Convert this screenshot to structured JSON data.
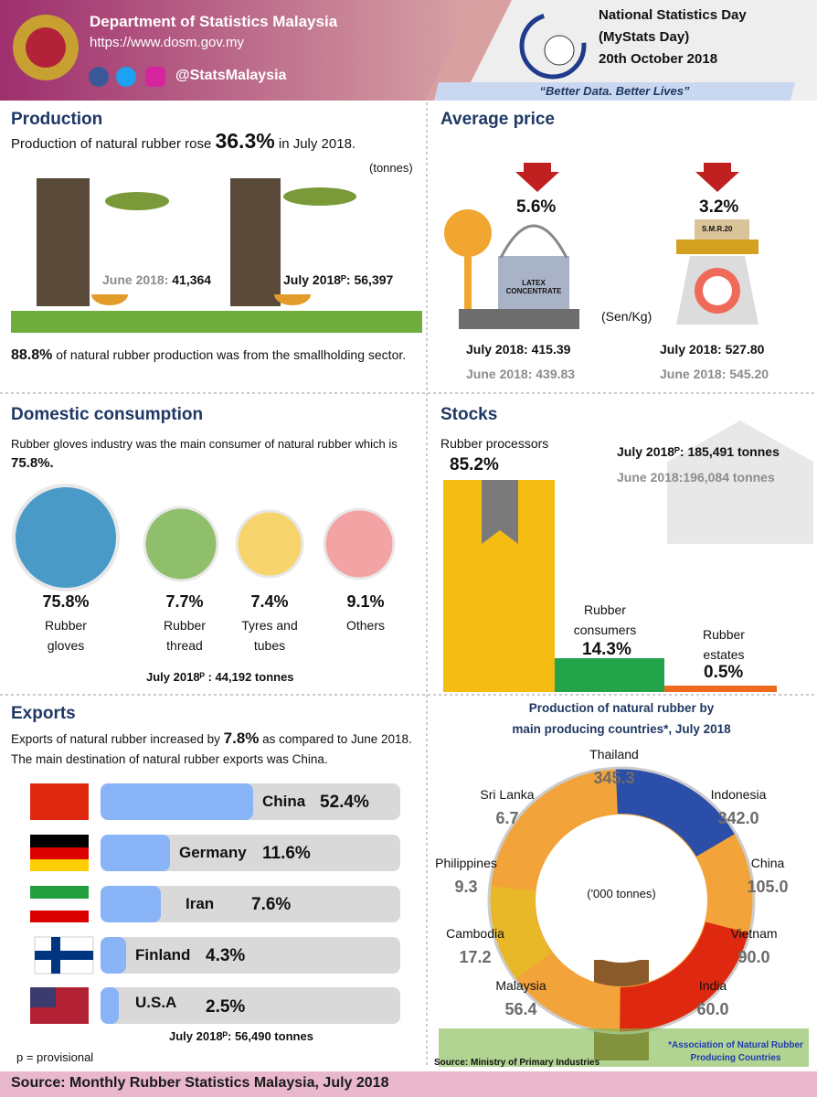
{
  "header": {
    "org": "Department of Statistics Malaysia",
    "url": "https://www.dosm.gov.my",
    "handle": "@StatsMalaysia",
    "event_title": "National Statistics Day",
    "event_sub": "(MyStats Day)",
    "event_date": "20th October 2018",
    "tagline": "“Better Data. Better Lives”"
  },
  "production": {
    "title": "Production",
    "text_before": "Production of natural rubber rose",
    "change": "36.3%",
    "text_after": "in July 2018.",
    "unit": "(tonnes)",
    "june_label": "June 2018:",
    "june_value": "41,364",
    "july_label": "July 2018ᴾ:",
    "july_value": "56,397",
    "share": "88.8%",
    "share_text": "of natural rubber production was from the smallholding sector."
  },
  "average_price": {
    "title": "Average price",
    "latex_change": "5.6%",
    "latex_label": "LATEX CONCENTRATE",
    "smr_change": "3.2%",
    "smr_label": "S.M.R.20",
    "unit": "(Sen/Kg)",
    "latex_july": "July 2018: 415.39",
    "latex_june": "June 2018: 439.83",
    "smr_july": "July 2018: 527.80",
    "smr_june": "June 2018: 545.20"
  },
  "domestic": {
    "title": "Domestic consumption",
    "text": "Rubber gloves industry was the main consumer of  natural rubber  which is",
    "main_share": "75.8%.",
    "items": [
      {
        "value": "75.8%",
        "label": "Rubber gloves"
      },
      {
        "value": "7.7%",
        "label": "Rubber thread"
      },
      {
        "value": "7.4%",
        "label": "Tyres and tubes"
      },
      {
        "value": "9.1%",
        "label": "Others"
      }
    ],
    "total": "July 2018ᴾ : 44,192 tonnes"
  },
  "stocks": {
    "title": "Stocks",
    "items": [
      {
        "label": "Rubber processors",
        "value": "85.2%"
      },
      {
        "label": "Rubber consumers",
        "value": "14.3%"
      },
      {
        "label": "Rubber estates",
        "value": "0.5%"
      }
    ],
    "july": "July 2018ᴾ: 185,491 tonnes",
    "june": "June 2018:196,084 tonnes"
  },
  "exports": {
    "title": "Exports",
    "text_before": "Exports of natural rubber increased by",
    "change": "7.8%",
    "text_after": "as compared to June 2018.",
    "text_line2": "The main destination of natural rubber exports was China.",
    "items": [
      {
        "country": "China",
        "value": "52.4%"
      },
      {
        "country": "Germany",
        "value": "11.6%"
      },
      {
        "country": "Iran",
        "value": "7.6%"
      },
      {
        "country": "Finland",
        "value": "4.3%"
      },
      {
        "country": "U.S.A",
        "value": "2.5%"
      }
    ],
    "total": "July 2018ᴾ: 56,490 tonnes",
    "footnote": "p =  provisional"
  },
  "producers": {
    "title_line1": "Production of natural rubber by",
    "title_line2": "main producing countries*, July 2018",
    "unit": "('000 tonnes)",
    "countries": [
      {
        "name": "Thailand",
        "value": "345.3"
      },
      {
        "name": "Sri Lanka",
        "value": "6.7"
      },
      {
        "name": "Indonesia",
        "value": "342.0"
      },
      {
        "name": "Philippines",
        "value": "9.3"
      },
      {
        "name": "China",
        "value": "105.0"
      },
      {
        "name": "Cambodia",
        "value": "17.2"
      },
      {
        "name": "Vietnam",
        "value": "90.0"
      },
      {
        "name": "Malaysia",
        "value": "56.4"
      },
      {
        "name": "India",
        "value": "60.0"
      }
    ],
    "source": "Source: Ministry of Primary Industries",
    "note": "*Association of Natural Rubber Producing Countries"
  },
  "footer": {
    "source": "Source:  Monthly Rubber Statistics Malaysia, July 2018"
  }
}
